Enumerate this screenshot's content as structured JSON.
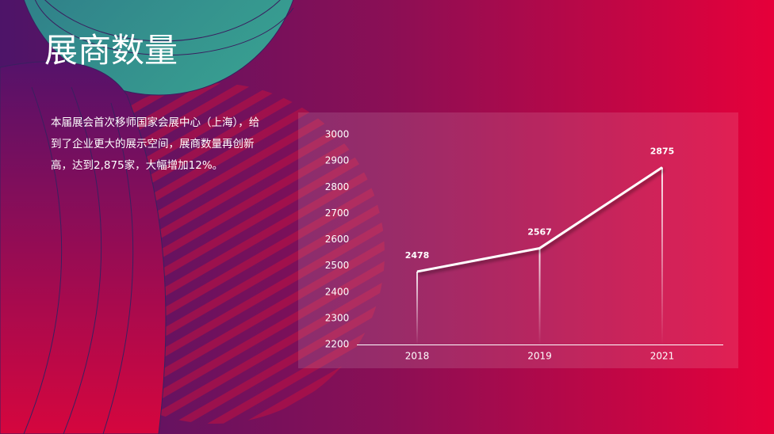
{
  "title": "展商数量",
  "description": "本届展会首次移师国家会展中心（上海），给到了企业更大的展示空间，展商数量再创新高，达到2,875家，大幅增加12%。",
  "chart_data": {
    "type": "line",
    "categories": [
      "2018",
      "2019",
      "2021"
    ],
    "values": [
      2478,
      2567,
      2875
    ],
    "color": "#ffffff",
    "ylim": [
      2200,
      3000
    ],
    "yticks": [
      2200,
      2300,
      2400,
      2500,
      2600,
      2700,
      2800,
      2900,
      3000
    ],
    "grid": false
  }
}
